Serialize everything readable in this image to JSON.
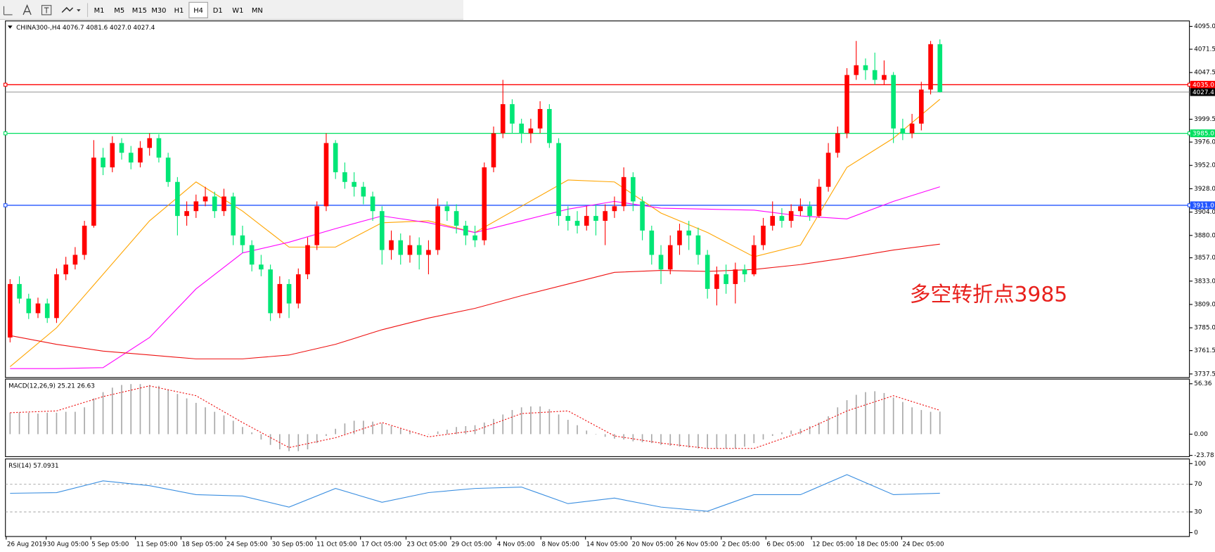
{
  "toolbar": {
    "timeframes": [
      "M1",
      "M5",
      "M15",
      "M30",
      "H1",
      "H4",
      "D1",
      "W1",
      "MN"
    ],
    "active": "H4"
  },
  "chart_data": [
    {
      "type": "candlestick",
      "title": "CHINA300-,H4  4076.7 4081.6 4027.0 4027.4",
      "annotation": "多空转折点3985",
      "up_color": "#ff0000",
      "down_color": "#00e676",
      "xlim": [
        0,
        100
      ],
      "ylim": [
        3733.8,
        4100.6
      ],
      "yticks": [
        {
          "value": 4095,
          "label": "4095.0"
        },
        {
          "value": 4071.5,
          "label": "4071.5"
        },
        {
          "value": 4047.5,
          "label": "4047.5"
        },
        {
          "value": 3999.5,
          "label": "3999.5"
        },
        {
          "value": 3976,
          "label": "3976.0"
        },
        {
          "value": 3952,
          "label": "3952.0"
        },
        {
          "value": 3928,
          "label": "3928.0"
        },
        {
          "value": 3904,
          "label": "3904.0"
        },
        {
          "value": 3880,
          "label": "3880.0"
        },
        {
          "value": 3857,
          "label": "3857.0"
        },
        {
          "value": 3833,
          "label": "3833.0"
        },
        {
          "value": 3809,
          "label": "3809.0"
        },
        {
          "value": 3785,
          "label": "3785.0"
        },
        {
          "value": 3761.5,
          "label": "3761.5"
        },
        {
          "value": 3737.5,
          "label": "3737.5"
        }
      ],
      "levels": [
        {
          "value": 4035,
          "label": "4035.0",
          "color": "#ff0000"
        },
        {
          "value": 3985,
          "label": "3985.0",
          "color": "#00e060"
        },
        {
          "value": 3911,
          "label": "3911.0",
          "color": "#2255ff"
        }
      ],
      "last_price": {
        "value": 4027.4,
        "label": "4027.4",
        "color": "#808080"
      },
      "open": [
        3775,
        3830,
        3815,
        3800,
        3810,
        3795,
        3840,
        3850,
        3860,
        3890,
        3960,
        3950,
        3975,
        3965,
        3955,
        3970,
        3980,
        3960,
        3935,
        3900,
        3905,
        3915,
        3920,
        3905,
        3920,
        3880,
        3870,
        3850,
        3845,
        3800,
        3830,
        3810,
        3840,
        3870,
        3910,
        3975,
        3945,
        3935,
        3930,
        3920,
        3905,
        3865,
        3875,
        3860,
        3870,
        3860,
        3865,
        3910,
        3905,
        3890,
        3880,
        3875,
        3950,
        3985,
        4015,
        3995,
        3985,
        3990,
        4010,
        3975,
        3900,
        3895,
        3890,
        3900,
        3895,
        3905,
        3910,
        3940,
        3915,
        3885,
        3860,
        3845,
        3870,
        3885,
        3880,
        3860,
        3825,
        3840,
        3830,
        3845,
        3840,
        3870,
        3890,
        3900,
        3895,
        3905,
        3910,
        3900,
        3930,
        3965,
        3985,
        4045,
        4055,
        4050,
        4040,
        4045,
        3990,
        3985,
        3995,
        4030,
        4076.7
      ],
      "high": [
        3835,
        3838,
        3820,
        3816,
        3815,
        3846,
        3858,
        3868,
        3895,
        3978,
        3970,
        3982,
        3980,
        3972,
        3977,
        3985,
        3984,
        3965,
        3940,
        3915,
        3922,
        3930,
        3925,
        3928,
        3924,
        3890,
        3875,
        3860,
        3850,
        3838,
        3835,
        3846,
        3878,
        3915,
        3985,
        3978,
        3955,
        3945,
        3935,
        3925,
        3910,
        3885,
        3882,
        3880,
        3878,
        3875,
        3918,
        3915,
        3912,
        3895,
        3890,
        3955,
        3992,
        4040,
        4020,
        4000,
        4000,
        4018,
        4015,
        3980,
        3910,
        3905,
        3910,
        3912,
        3912,
        3920,
        3950,
        3945,
        3920,
        3890,
        3870,
        3880,
        3892,
        3895,
        3888,
        3865,
        3848,
        3850,
        3852,
        3850,
        3880,
        3898,
        3915,
        3908,
        3912,
        3918,
        3915,
        3938,
        3975,
        3992,
        4052,
        4080,
        4062,
        4068,
        4060,
        4048,
        4000,
        4005,
        4038,
        4080,
        4081.6
      ],
      "low": [
        3770,
        3810,
        3794,
        3795,
        3790,
        3790,
        3834,
        3845,
        3855,
        3888,
        3942,
        3945,
        3958,
        3948,
        3950,
        3962,
        3955,
        3930,
        3880,
        3890,
        3898,
        3910,
        3898,
        3900,
        3870,
        3862,
        3843,
        3838,
        3792,
        3795,
        3795,
        3805,
        3835,
        3865,
        3905,
        3938,
        3928,
        3920,
        3912,
        3895,
        3850,
        3855,
        3850,
        3852,
        3845,
        3840,
        3860,
        3895,
        3882,
        3870,
        3868,
        3870,
        3945,
        3980,
        3985,
        3975,
        3975,
        3985,
        3970,
        3890,
        3885,
        3882,
        3885,
        3880,
        3870,
        3898,
        3905,
        3905,
        3875,
        3850,
        3830,
        3840,
        3860,
        3865,
        3850,
        3815,
        3808,
        3820,
        3810,
        3832,
        3838,
        3865,
        3885,
        3888,
        3888,
        3900,
        3895,
        3898,
        3925,
        3960,
        3980,
        4040,
        4040,
        4035,
        4035,
        3975,
        3978,
        3980,
        3988,
        4025,
        4027.0
      ],
      "close": [
        3830,
        3815,
        3800,
        3810,
        3795,
        3840,
        3850,
        3860,
        3890,
        3960,
        3950,
        3975,
        3965,
        3955,
        3970,
        3980,
        3960,
        3935,
        3900,
        3905,
        3915,
        3920,
        3905,
        3920,
        3880,
        3870,
        3850,
        3845,
        3800,
        3830,
        3810,
        3840,
        3870,
        3910,
        3975,
        3945,
        3935,
        3930,
        3920,
        3905,
        3865,
        3875,
        3860,
        3870,
        3860,
        3865,
        3910,
        3905,
        3890,
        3880,
        3875,
        3950,
        3985,
        4015,
        3995,
        3985,
        3990,
        4010,
        3975,
        3900,
        3895,
        3890,
        3900,
        3895,
        3905,
        3910,
        3940,
        3915,
        3885,
        3860,
        3845,
        3870,
        3885,
        3880,
        3860,
        3825,
        3840,
        3830,
        3845,
        3840,
        3870,
        3890,
        3900,
        3895,
        3905,
        3910,
        3900,
        3930,
        3965,
        3985,
        4045,
        4055,
        4050,
        4040,
        4045,
        3990,
        3985,
        3995,
        4030,
        4076.7,
        4027.4
      ],
      "line_x": [
        0,
        5,
        10,
        15,
        20,
        25,
        30,
        35,
        40,
        45,
        50,
        55,
        60,
        65,
        70,
        75,
        80,
        85,
        90,
        95,
        100
      ],
      "lines": [
        {
          "color": "#ffa500",
          "values": [
            3745,
            3785,
            3840,
            3895,
            3935,
            3905,
            3868,
            3868,
            3893,
            3895,
            3883,
            3910,
            3937,
            3935,
            3903,
            3883,
            3858,
            3870,
            3950,
            3980,
            4020
          ]
        },
        {
          "color": "#ff00ff",
          "values": [
            3743,
            3743,
            3744,
            3775,
            3825,
            3862,
            3873,
            3887,
            3900,
            3893,
            3883,
            3895,
            3907,
            3915,
            3908,
            3907,
            3906,
            3900,
            3897,
            3915,
            3930
          ]
        },
        {
          "color": "#ee1111",
          "values": [
            3777,
            3768,
            3761,
            3757,
            3753,
            3753,
            3757,
            3768,
            3783,
            3795,
            3805,
            3818,
            3830,
            3842,
            3844,
            3843,
            3845,
            3850,
            3857,
            3865,
            3871
          ]
        }
      ]
    },
    {
      "type": "macd",
      "title": "MACD(12,26,9) 25.21 26.63",
      "xlim": [
        0,
        100
      ],
      "ylim": [
        -25.15,
        61.56
      ],
      "yticks": [
        56.36,
        {
          "value": 0,
          "label": "0.00"
        },
        -23.78
      ],
      "color": "#a8a8a8",
      "values": [
        24,
        24,
        24,
        23,
        24,
        24,
        25,
        25,
        30,
        40,
        47,
        52,
        55,
        56,
        56,
        55,
        54,
        50,
        45,
        40,
        35,
        30,
        25,
        21,
        15,
        8,
        2,
        -6,
        -12,
        -17,
        -19,
        -19,
        -17,
        -10,
        -2,
        6,
        12,
        15,
        15,
        14,
        12,
        9,
        6,
        3,
        1,
        0,
        3,
        5,
        8,
        9,
        10,
        13,
        17,
        22,
        27,
        30,
        31,
        31,
        28,
        22,
        16,
        10,
        4,
        0,
        -3,
        -5,
        -6,
        -8,
        -9,
        -10,
        -12,
        -13,
        -14,
        -15,
        -16,
        -16,
        -16,
        -16,
        -16,
        -14,
        -10,
        -6,
        -2,
        2,
        4,
        6,
        9,
        13,
        20,
        30,
        38,
        44,
        47,
        48,
        46,
        41,
        36,
        30,
        27,
        25,
        25.21
      ],
      "line_x": [
        0,
        5,
        10,
        15,
        20,
        25,
        30,
        35,
        40,
        45,
        50,
        55,
        60,
        65,
        70,
        75,
        80,
        85,
        90,
        95,
        100
      ],
      "signal": {
        "color": "#ee1111",
        "values": [
          24,
          26,
          42,
          54,
          43,
          13,
          -15,
          -4,
          13,
          -3,
          4,
          23,
          26,
          -2,
          -10,
          -16,
          -16,
          2,
          26,
          43,
          26.63
        ]
      }
    },
    {
      "type": "line",
      "title": "RSI(14) 57.0931",
      "xlim": [
        0,
        100
      ],
      "ylim": [
        -5.6,
        106.7
      ],
      "yticks": [
        100,
        70,
        30,
        0
      ],
      "levels": [
        70,
        30
      ],
      "color": "#3a8ee0",
      "x": [
        0,
        5,
        10,
        15,
        20,
        25,
        30,
        35,
        40,
        45,
        50,
        55,
        60,
        65,
        70,
        75,
        80,
        85,
        90,
        95,
        100
      ],
      "values": [
        57,
        58,
        75,
        68,
        55,
        53,
        37,
        64,
        44,
        58,
        64,
        66,
        42,
        50,
        37,
        31,
        55,
        55,
        84,
        55,
        57.0931
      ],
      "xticks": [
        {
          "value": 0,
          "label": "26 Aug 2019"
        },
        {
          "value": 4.3,
          "label": "30 Aug 05:00"
        },
        {
          "value": 9.1,
          "label": "5 Sep 05:00"
        },
        {
          "value": 13.9,
          "label": "11 Sep 05:00"
        },
        {
          "value": 18.8,
          "label": "18 Sep 05:00"
        },
        {
          "value": 23.6,
          "label": "24 Sep 05:00"
        },
        {
          "value": 28.5,
          "label": "30 Sep 05:00"
        },
        {
          "value": 33.3,
          "label": "11 Oct 05:00"
        },
        {
          "value": 38.1,
          "label": "17 Oct 05:00"
        },
        {
          "value": 43,
          "label": "23 Oct 05:00"
        },
        {
          "value": 47.8,
          "label": "29 Oct 05:00"
        },
        {
          "value": 52.7,
          "label": "4 Nov 05:00"
        },
        {
          "value": 57.5,
          "label": "8 Nov 05:00"
        },
        {
          "value": 62.3,
          "label": "14 Nov 05:00"
        },
        {
          "value": 67.2,
          "label": "20 Nov 05:00"
        },
        {
          "value": 72,
          "label": "26 Nov 05:00"
        },
        {
          "value": 76.9,
          "label": "2 Dec 05:00"
        },
        {
          "value": 81.7,
          "label": "6 Dec 05:00"
        },
        {
          "value": 86.6,
          "label": "12 Dec 05:00"
        },
        {
          "value": 91.4,
          "label": "18 Dec 05:00"
        },
        {
          "value": 96.3,
          "label": "24 Dec 05:00"
        }
      ]
    }
  ]
}
